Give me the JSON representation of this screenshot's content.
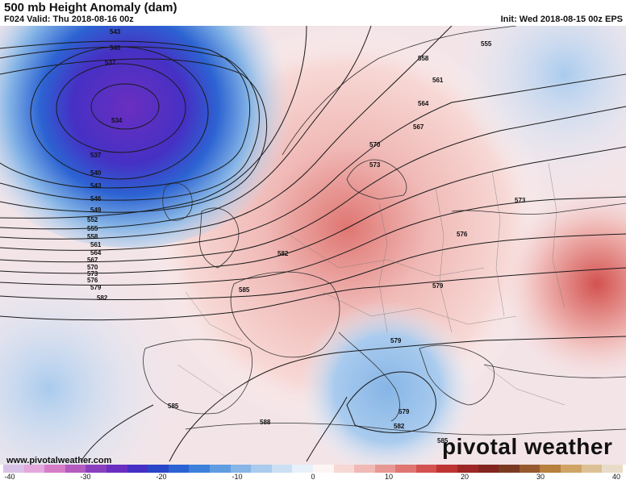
{
  "header": {
    "title": "500 mb Height Anomaly (dam)",
    "valid": "F024 Valid: Thu 2018-08-16 00z",
    "init": "Init: Wed 2018-08-15 00z EPS"
  },
  "footer": {
    "website": "www.pivotalweather.com",
    "brand": "pivotal weather"
  },
  "colorbar": {
    "ticks": [
      "-40",
      "-30",
      "-20",
      "-10",
      "0",
      "10",
      "20",
      "30",
      "40"
    ],
    "colors": [
      "#d9c2e8",
      "#e4a8dc",
      "#d77dc8",
      "#b45bc0",
      "#8a3fbd",
      "#6a2fc0",
      "#4630c4",
      "#2b45c8",
      "#2c63d2",
      "#3d80db",
      "#5f9ce0",
      "#86b5e6",
      "#a9cbee",
      "#cbe0f4",
      "#e8f1fa",
      "#fdf5f3",
      "#f7d8d5",
      "#f0b9b6",
      "#e89894",
      "#df7672",
      "#d3524f",
      "#bd3433",
      "#9f2626",
      "#83241f",
      "#7a3a22",
      "#96582e",
      "#b7803f",
      "#cfa466",
      "#dcc196",
      "#e8dcc8"
    ]
  },
  "map": {
    "contour_labels": [
      "543",
      "540",
      "537",
      "534",
      "537",
      "540",
      "543",
      "546",
      "549",
      "552",
      "555",
      "558",
      "561",
      "564",
      "567",
      "570",
      "573",
      "576",
      "579",
      "582",
      "555",
      "558",
      "561",
      "564",
      "567",
      "570",
      "573",
      "573",
      "576",
      "582",
      "585",
      "579",
      "579",
      "579",
      "582",
      "585",
      "585",
      "588"
    ]
  }
}
